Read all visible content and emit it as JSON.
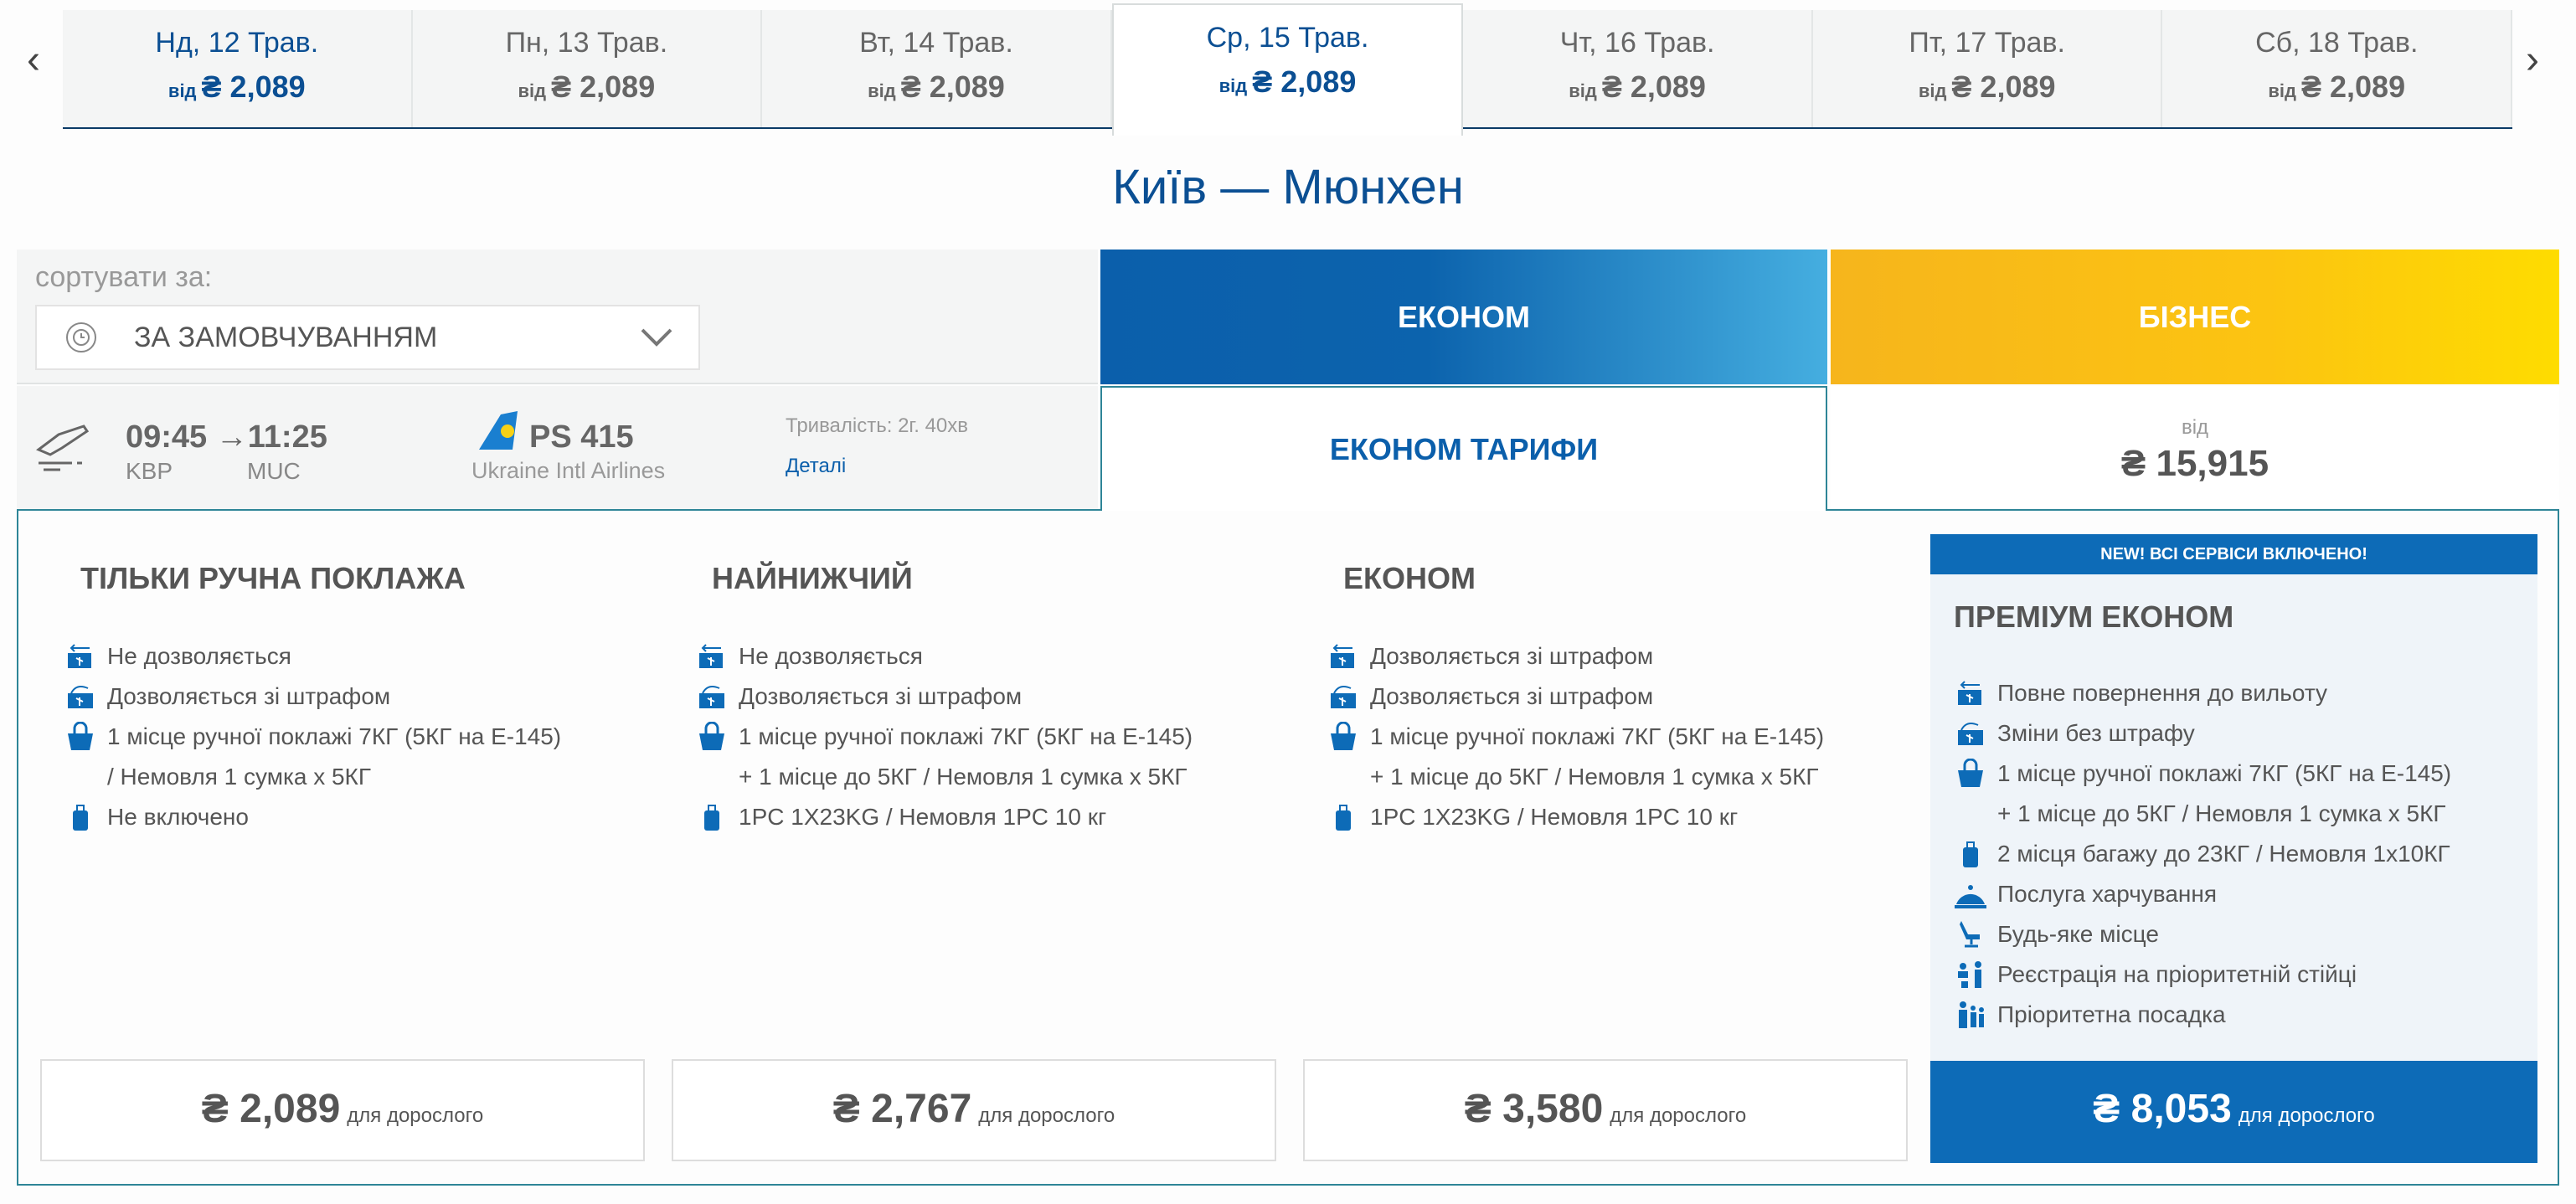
{
  "date_nav": {
    "prev_icon": "chevron-left-icon",
    "next_icon": "chevron-right-icon",
    "from_label": "від",
    "tabs": [
      {
        "date": "Нд, 12 Трав.",
        "price": "₴ 2,089"
      },
      {
        "date": "Пн, 13 Трав.",
        "price": "₴ 2,089"
      },
      {
        "date": "Вт, 14 Трав.",
        "price": "₴ 2,089"
      },
      {
        "date": "Ср, 15 Трав.",
        "price": "₴ 2,089",
        "active": true
      },
      {
        "date": "Чт, 16 Трав.",
        "price": "₴ 2,089"
      },
      {
        "date": "Пт, 17 Трав.",
        "price": "₴ 2,089"
      },
      {
        "date": "Сб, 18 Трав.",
        "price": "₴ 2,089"
      }
    ]
  },
  "route_title": "Київ — Мюнхен",
  "sort": {
    "label": "сортувати за:",
    "value": "ЗА ЗАМОВЧУВАННЯМ"
  },
  "cabins": {
    "economy": "ЕКОНОМ",
    "business": "БІЗНЕС",
    "economy_fares": "ЕКОНОМ ТАРИФИ",
    "business_from": "від",
    "business_price": "₴ 15,915"
  },
  "flight": {
    "dep_time": "09:45",
    "arr_time": "11:25",
    "dep_code": "KBP",
    "arr_code": "MUC",
    "number": "PS 415",
    "airline": "Ukraine Intl Airlines",
    "duration": "Тривалість: 2г. 40хв",
    "details": "Деталі"
  },
  "per_adult": "для дорослого",
  "colors": {
    "brand_blue": "#0b5fab",
    "business_yellow": "#fcc411",
    "panel_border": "#2e8597"
  },
  "fares": [
    {
      "name": "ТІЛЬКИ РУЧНА ПОКЛАЖА",
      "price": "₴ 2,089",
      "features": [
        {
          "icon": "refund-icon",
          "lines": [
            "Не дозволяється"
          ]
        },
        {
          "icon": "change-icon",
          "lines": [
            "Дозволяється зі штрафом"
          ]
        },
        {
          "icon": "hand-bag-icon",
          "lines": [
            "1 місце ручної поклажі 7КГ (5КГ на Е-145)",
            "/ Немовля 1 сумка х 5КГ"
          ]
        },
        {
          "icon": "suitcase-icon",
          "lines": [
            "Не включено"
          ]
        }
      ]
    },
    {
      "name": "НАЙНИЖЧИЙ",
      "price": "₴ 2,767",
      "features": [
        {
          "icon": "refund-icon",
          "lines": [
            "Не дозволяється"
          ]
        },
        {
          "icon": "change-icon",
          "lines": [
            "Дозволяється зі штрафом"
          ]
        },
        {
          "icon": "hand-bag-icon",
          "lines": [
            "1 місце ручної поклажі 7КГ (5КГ на Е-145)",
            "+ 1 місце до 5КГ / Немовля 1 сумка х 5КГ"
          ]
        },
        {
          "icon": "suitcase-icon",
          "lines": [
            "1PC 1X23KG / Немовля 1PC 10 кг"
          ]
        }
      ]
    },
    {
      "name": "ЕКОНОМ",
      "price": "₴ 3,580",
      "features": [
        {
          "icon": "refund-icon",
          "lines": [
            "Дозволяється зі штрафом"
          ]
        },
        {
          "icon": "change-icon",
          "lines": [
            "Дозволяється зі штрафом"
          ]
        },
        {
          "icon": "hand-bag-icon",
          "lines": [
            "1 місце ручної поклажі 7КГ (5КГ на Е-145)",
            "+ 1 місце до 5КГ / Немовля 1 сумка х 5КГ"
          ]
        },
        {
          "icon": "suitcase-icon",
          "lines": [
            "1PC 1X23KG / Немовля 1PC 10 кг"
          ]
        }
      ]
    },
    {
      "name": "ПРЕМІУМ ЕКОНОМ",
      "badge": "NEW! ВСІ СЕРВІСИ ВКЛЮЧЕНО!",
      "price": "₴ 8,053",
      "features": [
        {
          "icon": "refund-icon",
          "lines": [
            "Повне повернення до вильоту"
          ]
        },
        {
          "icon": "change-icon",
          "lines": [
            "Зміни без штрафу"
          ]
        },
        {
          "icon": "hand-bag-icon",
          "lines": [
            "1 місце ручної поклажі 7КГ (5КГ на Е-145)",
            "+ 1 місце до 5КГ / Немовля 1 сумка х 5КГ"
          ]
        },
        {
          "icon": "suitcase-icon",
          "lines": [
            "2 місця багажу до 23КГ / Немовля 1х10КГ"
          ]
        },
        {
          "icon": "meal-icon",
          "lines": [
            "Послуга харчування"
          ]
        },
        {
          "icon": "seat-icon",
          "lines": [
            "Будь-яке місце"
          ]
        },
        {
          "icon": "priority-checkin-icon",
          "lines": [
            "Реєстрація на пріоритетній стійці"
          ]
        },
        {
          "icon": "priority-boarding-icon",
          "lines": [
            "Пріоритетна посадка"
          ]
        }
      ]
    }
  ]
}
